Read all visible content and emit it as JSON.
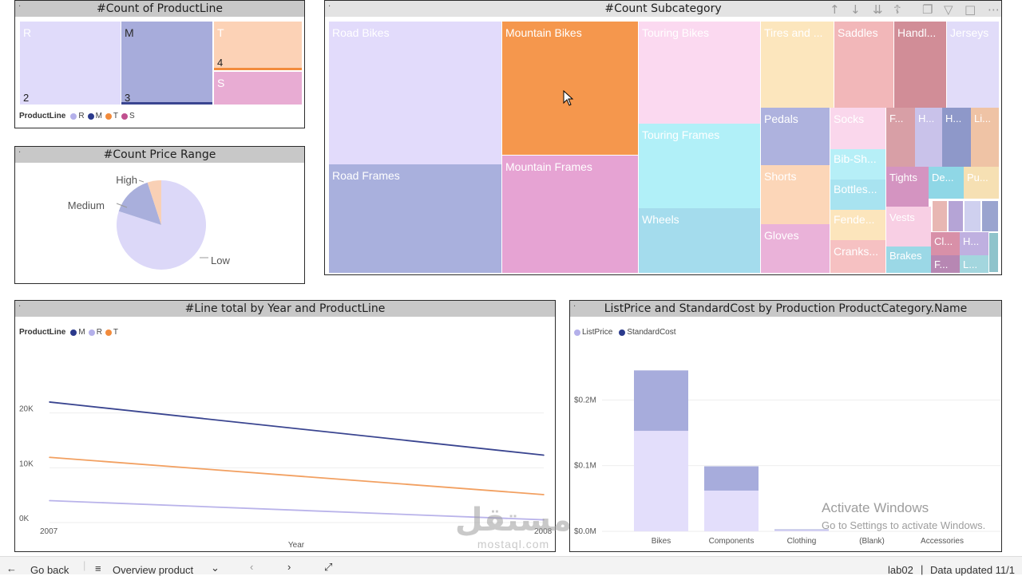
{
  "panels": {
    "productline": {
      "title": "#Count of ProductLine"
    },
    "pricerange": {
      "title": "#Count Price Range"
    },
    "subcategory": {
      "title": "#Count Subcategory"
    },
    "linetotal": {
      "title": "#Line total by Year and ProductLine"
    },
    "listprice": {
      "title": "ListPrice and StandardCost by Production ProductCategory.Name"
    }
  },
  "productline_tiles": [
    {
      "label": "R",
      "count": "2",
      "color": "#e0dbfa"
    },
    {
      "label": "M",
      "count": "3",
      "color": "#a7acdb"
    },
    {
      "label": "T",
      "count": "4",
      "color": "#fcd2b6"
    },
    {
      "label": "S",
      "count": "",
      "color": "#e8acd3"
    }
  ],
  "productline_legend": {
    "title": "ProductLine",
    "items": [
      {
        "label": "R",
        "color": "#b4b0ea"
      },
      {
        "label": "M",
        "color": "#2b3a8c"
      },
      {
        "label": "T",
        "color": "#f28b3c"
      },
      {
        "label": "S",
        "color": "#c0508f"
      }
    ]
  },
  "price_range": {
    "slices": [
      {
        "label": "Low",
        "value": 80,
        "color": "#dcd8f8"
      },
      {
        "label": "Medium",
        "value": 15,
        "color": "#a9afdc"
      },
      {
        "label": "High",
        "value": 5,
        "color": "#f9d0b5"
      }
    ]
  },
  "subcategory_tiles": [
    {
      "label": "Road Bikes",
      "color": "#e2dbfb"
    },
    {
      "label": "Road Frames",
      "color": "#a9b0dd"
    },
    {
      "label": "Mountain Bikes",
      "color": "#f5974d"
    },
    {
      "label": "Mountain Frames",
      "color": "#e6a3d3"
    },
    {
      "label": "Touring Bikes",
      "color": "#fbd9f0"
    },
    {
      "label": "Touring Frames",
      "color": "#b1f0f8"
    },
    {
      "label": "Wheels",
      "color": "#a4dced"
    },
    {
      "label": "Tires and ...",
      "color": "#fce6bd"
    },
    {
      "label": "Saddles",
      "color": "#f2b7b9"
    },
    {
      "label": "Handl...",
      "color": "#d18d97"
    },
    {
      "label": "Jerseys",
      "color": "#e1dcf9"
    },
    {
      "label": "Pedals",
      "color": "#aeb2de"
    },
    {
      "label": "Shorts",
      "color": "#fcd6b8"
    },
    {
      "label": "Gloves",
      "color": "#eab2d9"
    },
    {
      "label": "Socks",
      "color": "#fad7ec"
    },
    {
      "label": "Bib-Sh...",
      "color": "#b6eff7"
    },
    {
      "label": "Bottles...",
      "color": "#a8e3f0"
    },
    {
      "label": "Fende...",
      "color": "#fce5bc"
    },
    {
      "label": "Cranks...",
      "color": "#f6c1c2"
    },
    {
      "label": "F...",
      "color": "#d89fa6"
    },
    {
      "label": "H...",
      "color": "#c9c2ea"
    },
    {
      "label": "H...",
      "color": "#8e98c9"
    },
    {
      "label": "Li...",
      "color": "#efc3a5"
    },
    {
      "label": "Tights",
      "color": "#d494c1"
    },
    {
      "label": "De...",
      "color": "#8fd7e6"
    },
    {
      "label": "Pu...",
      "color": "#f6e0b3"
    },
    {
      "label": "Vests",
      "color": "#f8cfe4"
    },
    {
      "label": "Brakes",
      "color": "#9bd8e6"
    },
    {
      "label": "Cl...",
      "color": "#d890a8"
    },
    {
      "label": "H...",
      "color": "#bfb0e0"
    },
    {
      "label": "F...",
      "color": "#b787b3"
    },
    {
      "label": "L...",
      "color": "#a3d6de"
    }
  ],
  "toolbar": {
    "icons": [
      "arrow-up-icon",
      "arrow-down-icon",
      "double-arrow-down-icon",
      "expand-hierarchy-icon",
      "copy-icon",
      "filter-icon",
      "focus-mode-icon",
      "more-options-icon"
    ]
  },
  "line_legend": {
    "title": "ProductLine",
    "items": [
      {
        "label": "M",
        "color": "#2b3a8c"
      },
      {
        "label": "R",
        "color": "#b4b0ea"
      },
      {
        "label": "T",
        "color": "#f28b3c"
      }
    ]
  },
  "chart_data": [
    {
      "type": "line",
      "title": "#Line total by Year and ProductLine",
      "x": [
        "2007",
        "2008"
      ],
      "xlabel": "Year",
      "ylabel": "",
      "ylim": [
        0,
        30000
      ],
      "yticks": [
        "0K",
        "10K",
        "20K"
      ],
      "series": [
        {
          "name": "M",
          "values": [
            22000,
            12300
          ],
          "color": "#3a4590"
        },
        {
          "name": "R",
          "values": [
            4000,
            500
          ],
          "color": "#b9b3ea"
        },
        {
          "name": "T",
          "values": [
            11900,
            5100
          ],
          "color": "#f2a061"
        }
      ]
    },
    {
      "type": "bar",
      "title": "ListPrice and StandardCost by Production ProductCategory.Name",
      "categories": [
        "Bikes",
        "Components",
        "Clothing",
        "(Blank)",
        "Accessories"
      ],
      "ylim": [
        0,
        0.3
      ],
      "yticks": [
        "$0.0M",
        "$0.1M",
        "$0.2M"
      ],
      "series": [
        {
          "name": "ListPrice",
          "values": [
            0.153,
            0.062,
            0.002,
            0,
            0
          ],
          "color": "#e3defb"
        },
        {
          "name": "StandardCost",
          "values": [
            0.092,
            0.037,
            0.001,
            0,
            0
          ],
          "color": "#a7acdc"
        }
      ]
    }
  ],
  "bar_legend": {
    "items": [
      {
        "label": "ListPrice",
        "color": "#b4b0ea"
      },
      {
        "label": "StandardCost",
        "color": "#2b3a8c"
      }
    ]
  },
  "footer": {
    "go_back": "Go back",
    "page_name": "Overview product",
    "report_name": "lab02",
    "data_updated": "Data updated 11/1"
  },
  "watermark": {
    "activate_title": "Activate Windows",
    "activate_sub": "Go to Settings to activate Windows.",
    "brand_arabic": "مستقل",
    "brand_latin": "mostaql.com"
  }
}
